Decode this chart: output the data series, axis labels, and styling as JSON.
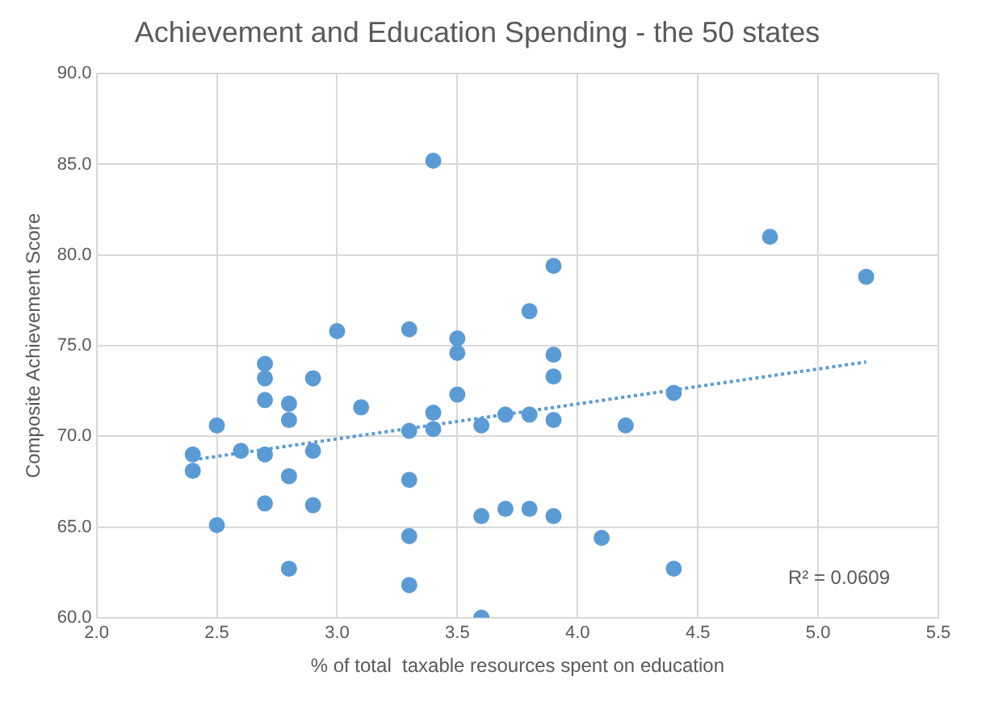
{
  "chart_data": {
    "type": "scatter",
    "title": "Achievement and Education Spending - the 50 states",
    "xlabel": "% of total  taxable resources spent on education",
    "ylabel": "Composite Achievement Score",
    "series": [
      {
        "color": "#5b9bd5",
        "marker": "circle",
        "x": [
          2.4,
          2.4,
          2.5,
          2.5,
          2.6,
          2.7,
          2.7,
          2.7,
          2.7,
          2.7,
          2.8,
          2.8,
          2.8,
          2.8,
          2.9,
          2.9,
          2.9,
          3.0,
          3.1,
          3.3,
          3.3,
          3.3,
          3.3,
          3.3,
          3.4,
          3.4,
          3.4,
          3.5,
          3.5,
          3.5,
          3.6,
          3.6,
          3.6,
          3.7,
          3.7,
          3.8,
          3.8,
          3.8,
          3.9,
          3.9,
          3.9,
          3.9,
          3.9,
          4.1,
          4.2,
          4.4,
          4.4,
          4.8,
          5.2
        ],
        "values": [
          69.0,
          68.1,
          70.6,
          65.1,
          69.2,
          74.0,
          73.2,
          72.0,
          69.0,
          66.3,
          71.8,
          70.9,
          67.8,
          62.7,
          73.2,
          69.2,
          66.2,
          75.8,
          71.6,
          75.9,
          70.3,
          67.6,
          64.5,
          61.8,
          85.2,
          71.3,
          70.4,
          75.4,
          74.6,
          72.3,
          70.6,
          65.6,
          60.0,
          71.2,
          66.0,
          76.9,
          71.2,
          66.0,
          79.4,
          74.5,
          73.3,
          70.9,
          65.6,
          64.4,
          70.6,
          72.4,
          62.7,
          81.0,
          78.8
        ]
      },
      {
        "type": "line",
        "color": "#5b9bd5",
        "marker": "none",
        "line_style": "dotted",
        "x": [
          2.4,
          5.2
        ],
        "values": [
          68.7,
          74.1
        ]
      }
    ],
    "xlim": [
      2.0,
      5.5
    ],
    "xticks": [
      {
        "value": 2,
        "label": "2.0"
      },
      {
        "value": 2.5,
        "label": "2.5"
      },
      {
        "value": 3,
        "label": "3.0"
      },
      {
        "value": 3.5,
        "label": "3.5"
      },
      {
        "value": 4,
        "label": "4.0"
      },
      {
        "value": 4.5,
        "label": "4.5"
      },
      {
        "value": 5,
        "label": "5.0"
      },
      {
        "value": 5.5,
        "label": "5.5"
      }
    ],
    "ylim": [
      60,
      90
    ],
    "yticks": [
      {
        "value": 60,
        "label": "60.0"
      },
      {
        "value": 65,
        "label": "65.0"
      },
      {
        "value": 70,
        "label": "70.0"
      },
      {
        "value": 75,
        "label": "75.0"
      },
      {
        "value": 80,
        "label": "80.0"
      },
      {
        "value": 85,
        "label": "85.0"
      },
      {
        "value": 90,
        "label": "90.0"
      }
    ],
    "grid": true,
    "legend": false,
    "annotations": [
      "R² = 0.0609"
    ]
  }
}
